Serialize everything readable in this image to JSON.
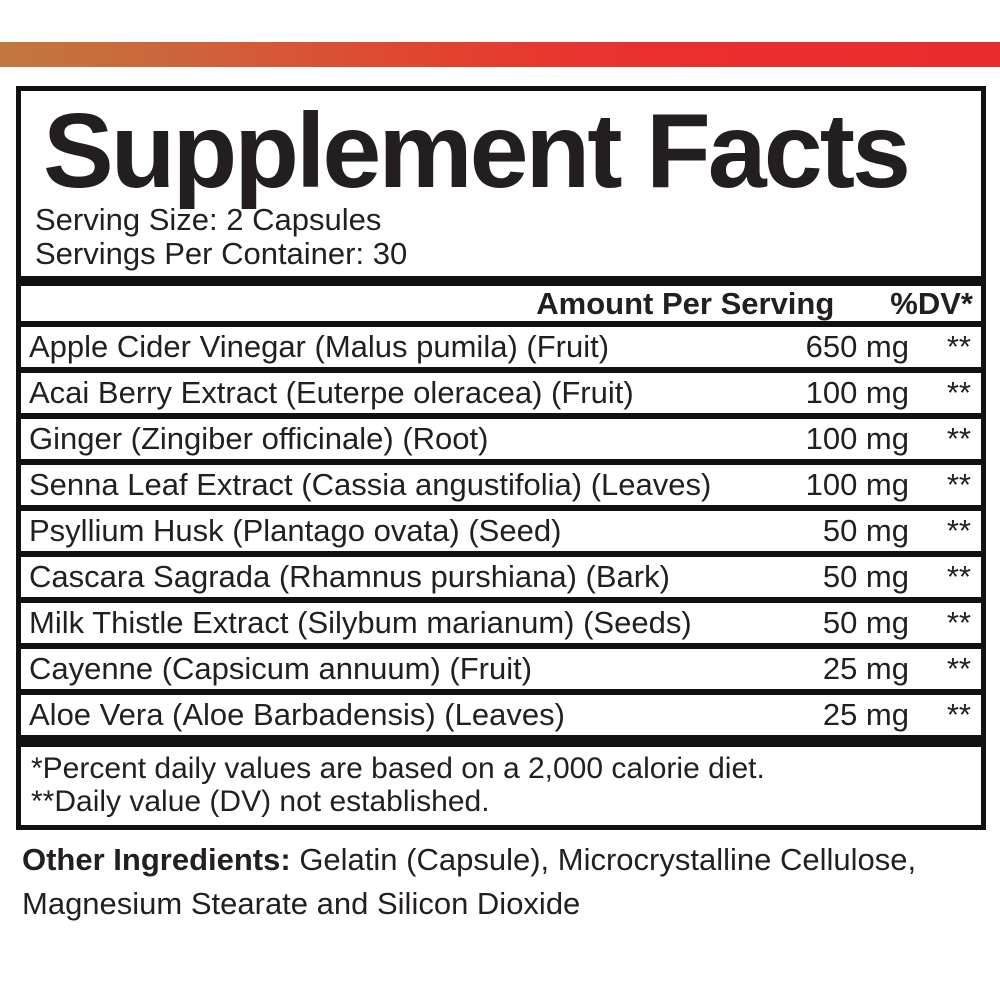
{
  "accent_bar": {
    "gradient_left_color": "#c0783f",
    "gradient_right_color": "#e92d2c"
  },
  "panel": {
    "title": "Supplement Facts",
    "serving_size": "Serving Size: 2 Capsules",
    "servings_per_container": "Servings Per Container: 30",
    "header": {
      "amount": "Amount Per Serving",
      "dv": "%DV*"
    },
    "rows": [
      {
        "name": "Apple Cider Vinegar (Malus pumila) (Fruit)",
        "amount": "650 mg",
        "dv": "**"
      },
      {
        "name": "Acai Berry Extract (Euterpe oleracea) (Fruit)",
        "amount": "100 mg",
        "dv": "**"
      },
      {
        "name": "Ginger (Zingiber officinale) (Root)",
        "amount": "100 mg",
        "dv": "**"
      },
      {
        "name": "Senna Leaf Extract (Cassia angustifolia) (Leaves)",
        "amount": "100 mg",
        "dv": "**"
      },
      {
        "name": "Psyllium Husk (Plantago ovata) (Seed)",
        "amount": "50 mg",
        "dv": "**"
      },
      {
        "name": "Cascara Sagrada (Rhamnus purshiana) (Bark)",
        "amount": "50 mg",
        "dv": "**"
      },
      {
        "name": "Milk Thistle Extract (Silybum marianum) (Seeds)",
        "amount": "50 mg",
        "dv": "**"
      },
      {
        "name": "Cayenne (Capsicum annuum) (Fruit)",
        "amount": "25 mg",
        "dv": "**"
      },
      {
        "name": "Aloe Vera (Aloe Barbadensis) (Leaves)",
        "amount": "25 mg",
        "dv": "**"
      }
    ],
    "footnotes": [
      "*Percent daily values are based on a 2,000 calorie diet.",
      "**Daily value (DV) not established."
    ]
  },
  "other_ingredients": {
    "label": "Other Ingredients:",
    "line1": " Gelatin (Capsule), Microcrystalline Cellulose,",
    "line2": "Magnesium Stearate and Silicon Dioxide"
  },
  "colors": {
    "text": "#231f20",
    "rule": "#111111",
    "background": "#ffffff"
  }
}
